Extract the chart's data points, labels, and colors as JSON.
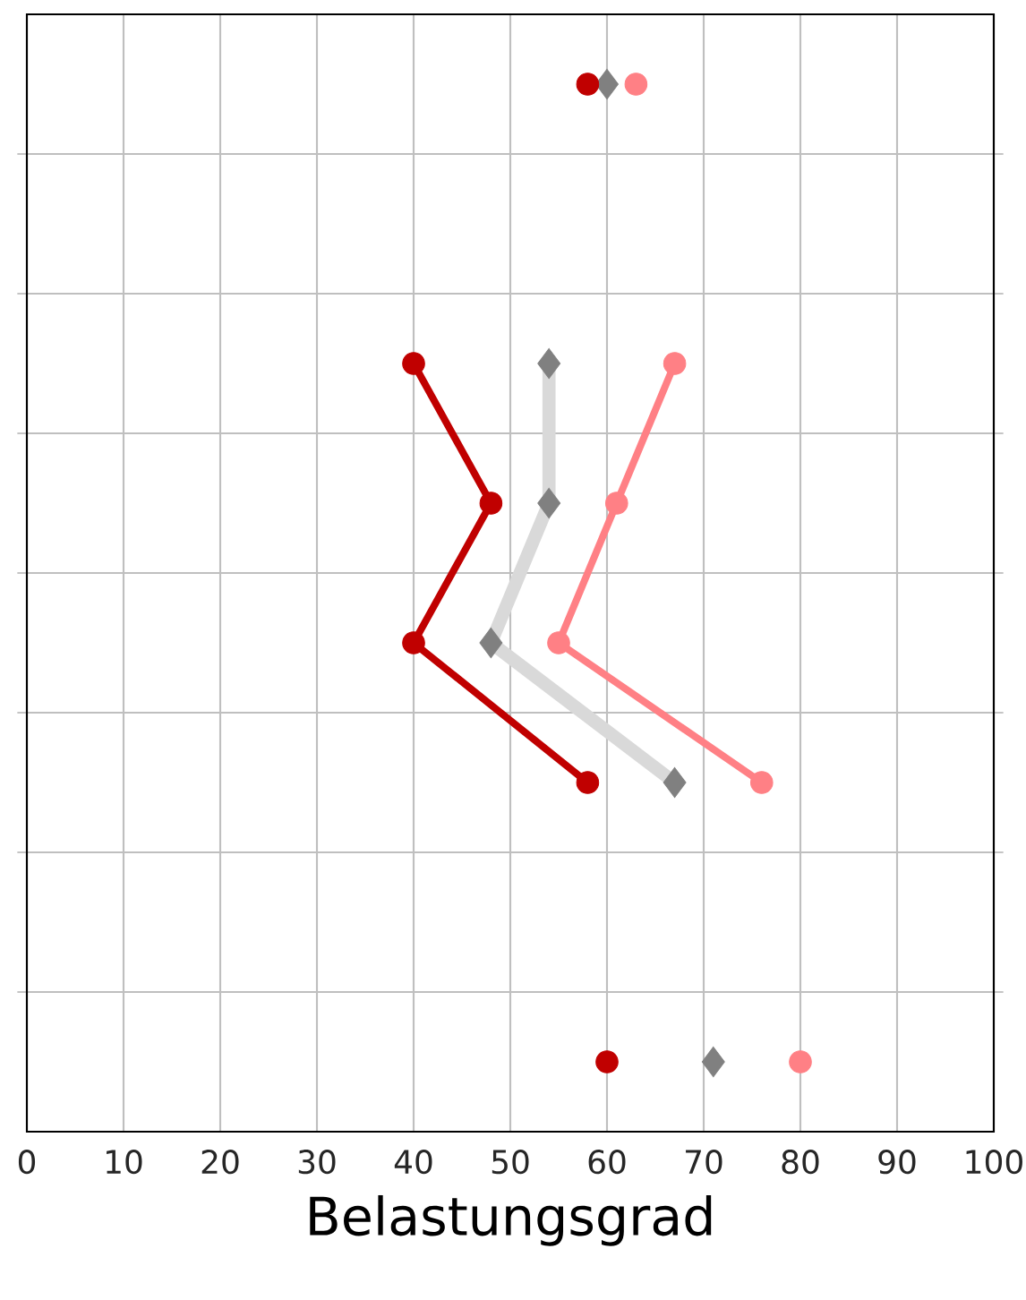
{
  "chart_data": {
    "type": "line",
    "orientation": "horizontal",
    "xlabel": "Belastungsgrad",
    "categories": [
      null,
      null,
      null,
      null,
      null,
      null,
      null,
      null
    ],
    "xlim": [
      0,
      100
    ],
    "xticks": [
      0,
      10,
      20,
      30,
      40,
      50,
      60,
      70,
      80,
      90,
      100
    ],
    "grid": true,
    "line_style": "solid",
    "series": [
      {
        "color": "#808080",
        "marker": "diamond",
        "values": [
          60,
          null,
          54,
          54,
          48,
          67,
          null,
          71
        ]
      },
      {
        "color": "#c00000",
        "marker": "circle",
        "values": [
          58,
          null,
          40,
          48,
          40,
          58,
          null,
          60
        ]
      },
      {
        "color": "#ff8085",
        "marker": "circle",
        "values": [
          63,
          null,
          67,
          61,
          55,
          76,
          null,
          80
        ]
      }
    ]
  }
}
